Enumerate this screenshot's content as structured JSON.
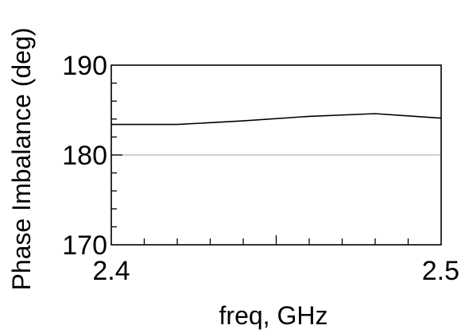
{
  "chart_data": {
    "type": "line",
    "title": "",
    "xlabel": "freq, GHz",
    "ylabel": "Phase Imbalance (deg)",
    "xlim": [
      2.4,
      2.5
    ],
    "ylim": [
      170,
      190
    ],
    "x_ticks": [
      "2.4",
      "2.5"
    ],
    "y_ticks": [
      "170",
      "180",
      "190"
    ],
    "x_minor_step": 0.01,
    "y_minor_step": 2,
    "grid": false,
    "reference_line": {
      "y": 180,
      "color": "#bdbdbd"
    },
    "series": [
      {
        "color": "#000000",
        "x": [
          2.4,
          2.42,
          2.44,
          2.46,
          2.48,
          2.5
        ],
        "y": [
          183.4,
          183.4,
          183.8,
          184.3,
          184.6,
          184.1
        ]
      }
    ]
  }
}
